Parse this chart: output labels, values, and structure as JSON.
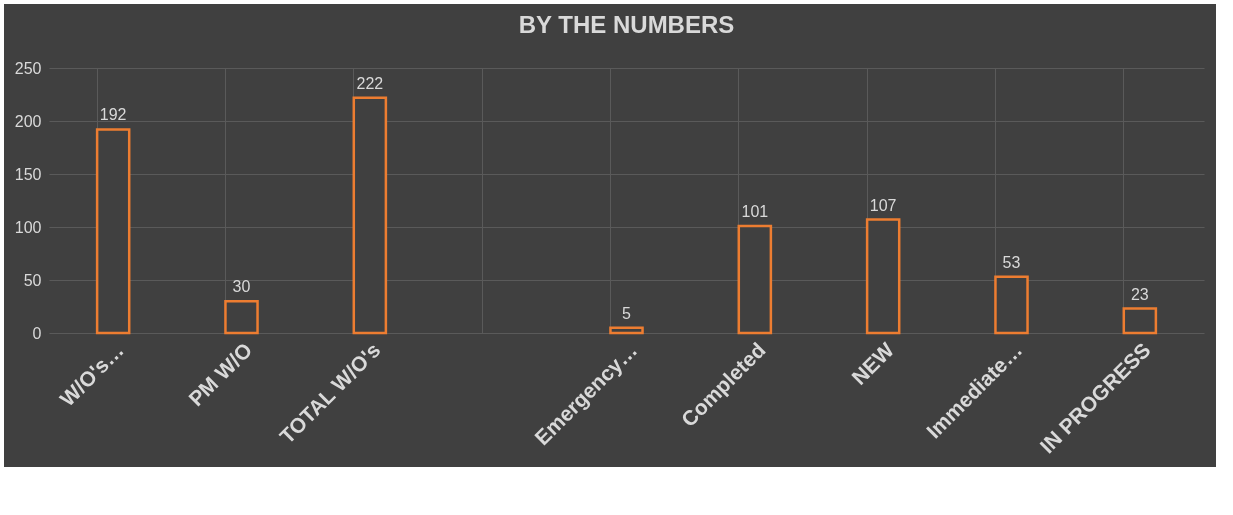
{
  "chart_data": {
    "type": "bar",
    "title": "BY THE NUMBERS",
    "categories": [
      "W/O's…",
      "PM W/O",
      "TOTAL W/O's",
      null,
      "Emergency…",
      "Completed",
      "NEW",
      "Immediate…",
      "IN PROGRESS"
    ],
    "values": [
      192,
      30,
      222,
      null,
      5,
      101,
      107,
      53,
      23
    ],
    "color": "#ed7d31",
    "ylim": [
      0,
      250
    ],
    "yticks": [
      0,
      50,
      100,
      150,
      200,
      250
    ],
    "grid": true,
    "data_labels": true
  }
}
